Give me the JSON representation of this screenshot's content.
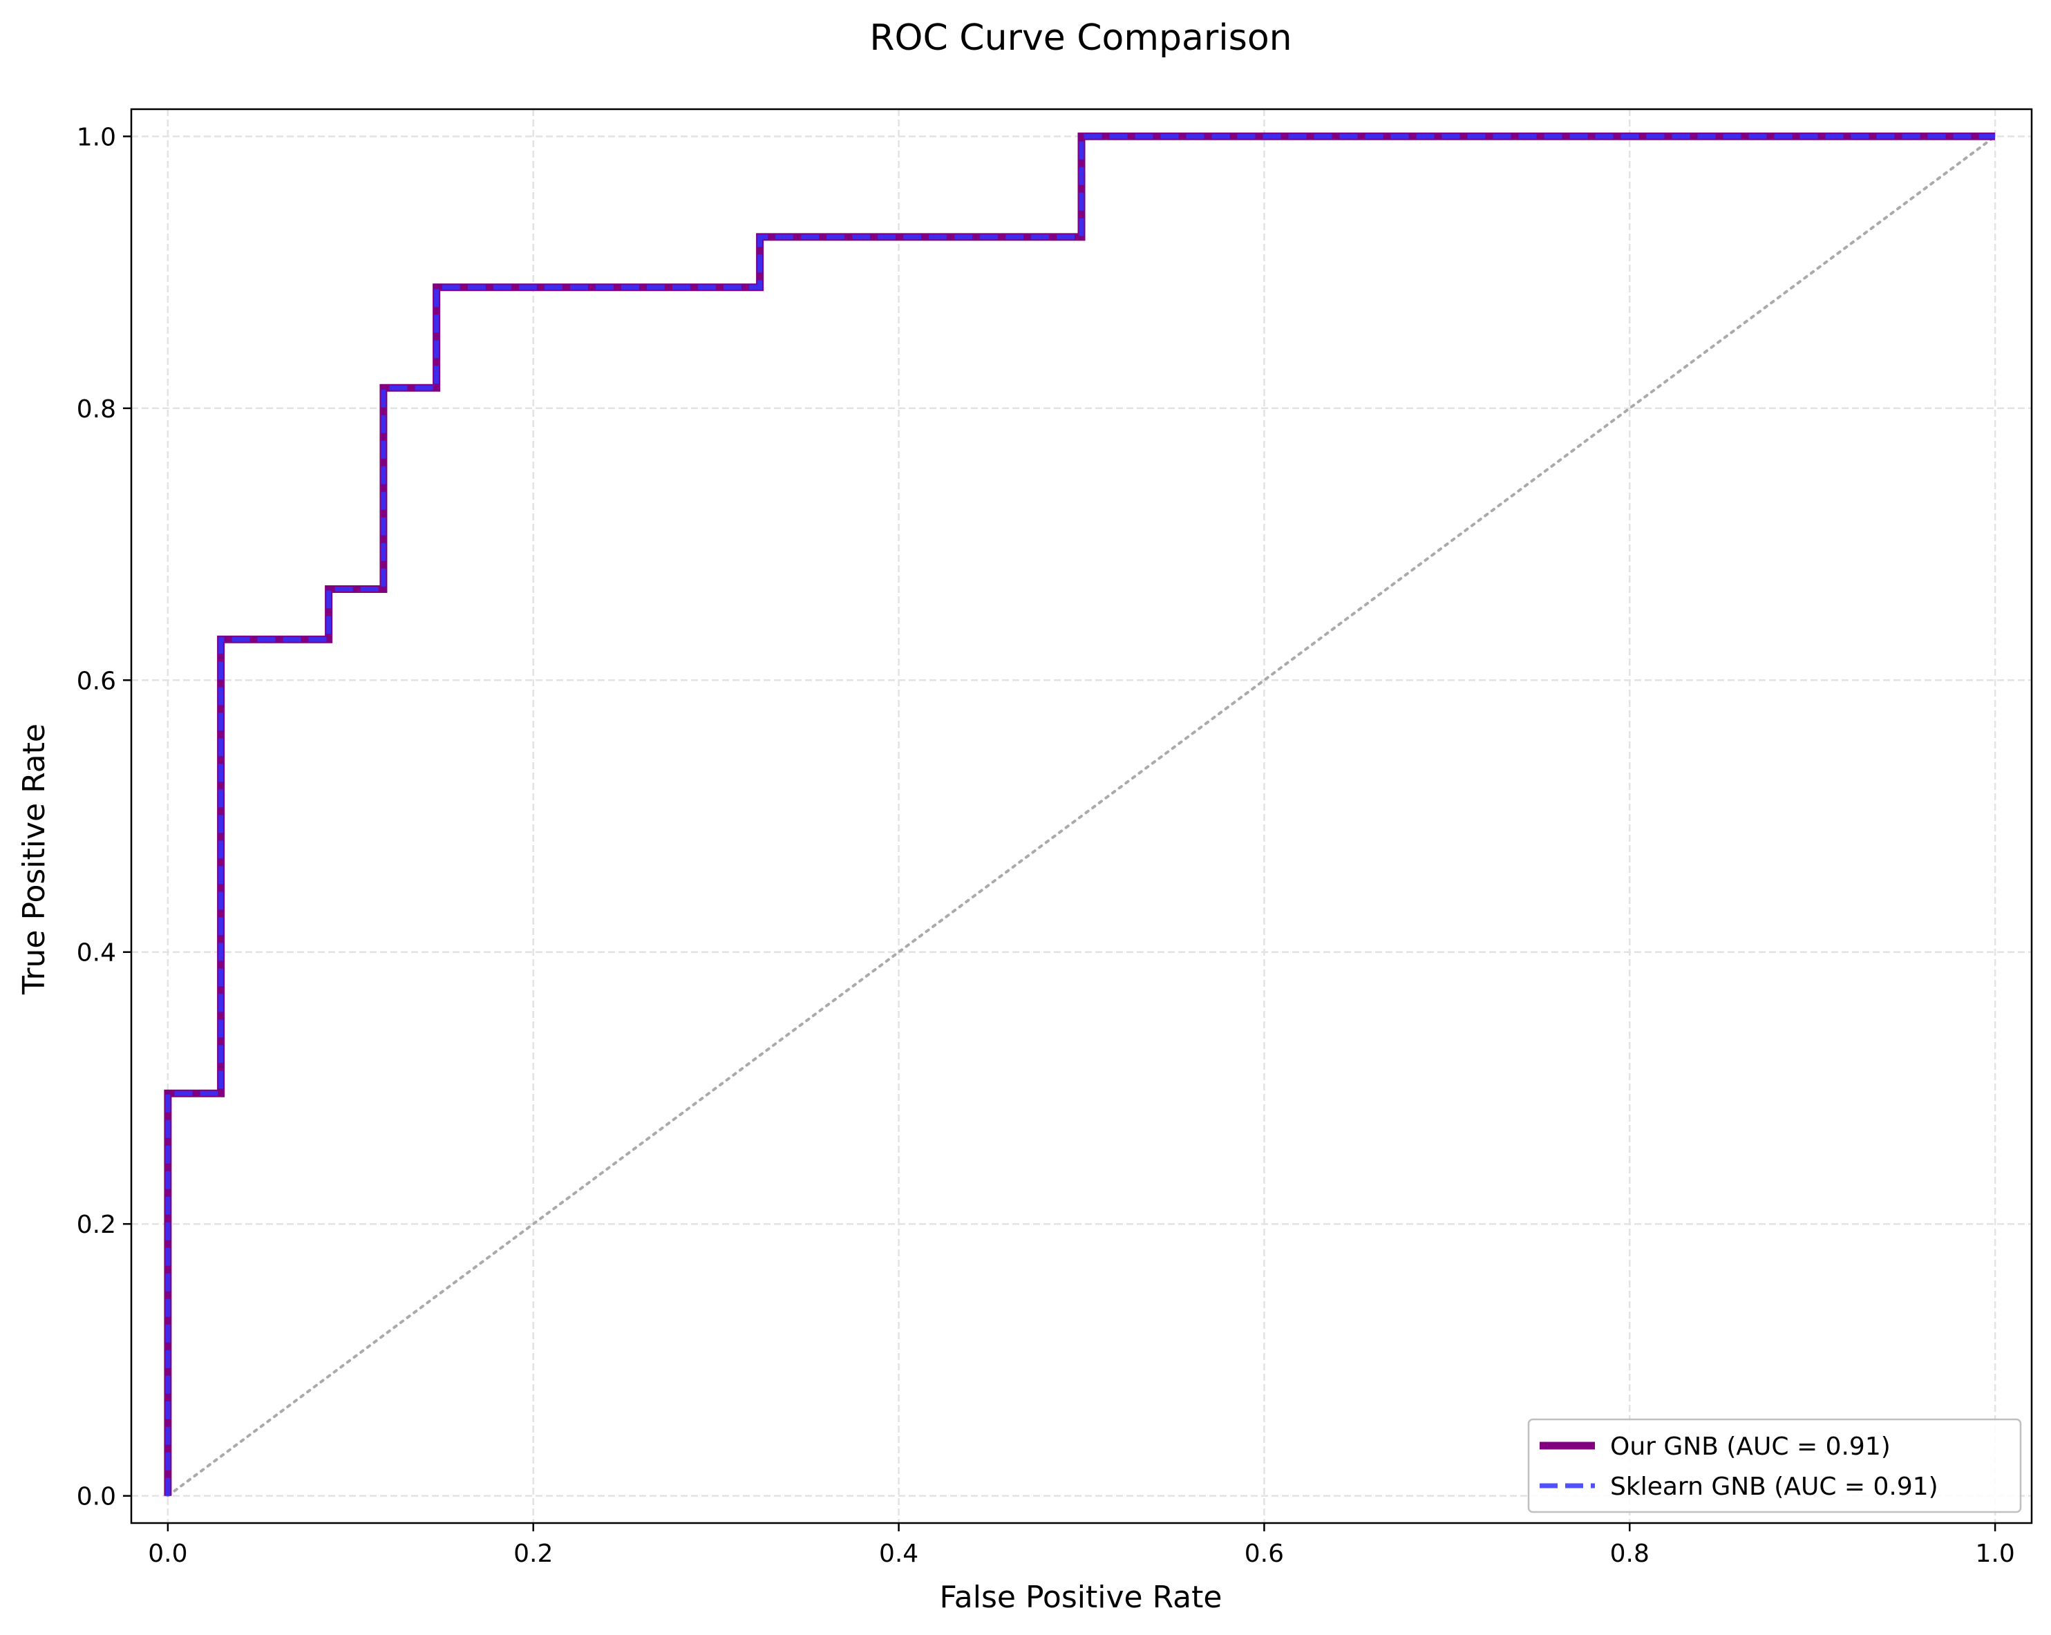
{
  "chart_data": {
    "type": "line",
    "title": "ROC Curve Comparison",
    "xlabel": "False Positive Rate",
    "ylabel": "True Positive Rate",
    "xlim": [
      -0.02,
      1.02
    ],
    "ylim": [
      -0.02,
      1.02
    ],
    "xticks": [
      0.0,
      0.2,
      0.4,
      0.6,
      0.8,
      1.0
    ],
    "yticks": [
      0.0,
      0.2,
      0.4,
      0.6,
      0.8,
      1.0
    ],
    "xtick_labels": [
      "0.0",
      "0.2",
      "0.4",
      "0.6",
      "0.8",
      "1.0"
    ],
    "ytick_labels": [
      "0.0",
      "0.2",
      "0.4",
      "0.6",
      "0.8",
      "1.0"
    ],
    "grid": true,
    "legend_position": "lower-right",
    "series": [
      {
        "name": "Our GNB (AUC = 0.91)",
        "color": "#800080",
        "style": "solid",
        "x": [
          0.0,
          0.0,
          0.029,
          0.029,
          0.088,
          0.088,
          0.118,
          0.118,
          0.147,
          0.147,
          0.324,
          0.324,
          0.5,
          0.5,
          1.0
        ],
        "y": [
          0.0,
          0.296,
          0.296,
          0.63,
          0.63,
          0.667,
          0.667,
          0.815,
          0.815,
          0.889,
          0.889,
          0.926,
          0.926,
          1.0,
          1.0
        ]
      },
      {
        "name": "Sklearn GNB (AUC = 0.91)",
        "color": "#3333ff",
        "style": "dashed",
        "x": [
          0.0,
          0.0,
          0.029,
          0.029,
          0.088,
          0.088,
          0.118,
          0.118,
          0.147,
          0.147,
          0.324,
          0.324,
          0.5,
          0.5,
          1.0
        ],
        "y": [
          0.0,
          0.296,
          0.296,
          0.63,
          0.63,
          0.667,
          0.667,
          0.815,
          0.815,
          0.889,
          0.889,
          0.926,
          0.926,
          1.0,
          1.0
        ]
      }
    ],
    "reference_line": {
      "x": [
        0.0,
        1.0
      ],
      "y": [
        0.0,
        1.0
      ],
      "color": "#aaaaaa",
      "style": "dotted"
    }
  }
}
